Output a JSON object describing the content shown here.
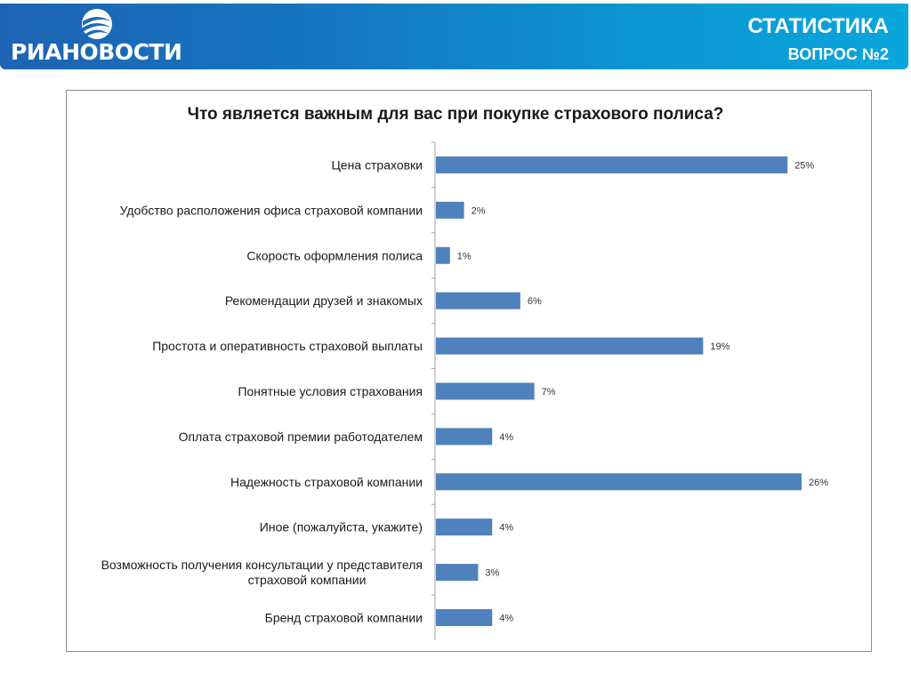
{
  "header": {
    "logo_text": "РИАНОВОСТИ",
    "title": "СТАТИСТИКА",
    "subtitle": "ВОПРОС №2",
    "icon": "ria-novosti-logo-icon"
  },
  "colors": {
    "header_gradient_start": "#1d63b3",
    "header_gradient_end": "#09a6dc",
    "bar": "#4f81bd",
    "axis": "#a6a6a6",
    "text": "#1a1a1a"
  },
  "chart_data": {
    "type": "bar",
    "orientation": "horizontal",
    "title": "Что является важным для вас при покупке страхового полиса?",
    "categories": [
      "Цена страховки",
      "Удобство расположения офиса страховой компании",
      "Скорость оформления полиса",
      "Рекомендации друзей и знакомых",
      "Простота и оперативность страховой выплаты",
      "Понятные условия страхования",
      "Оплата страховой премии работодателем",
      "Надежность страховой компании",
      "Иное (пожалуйста, укажите)",
      "Возможность получения консультации у представителя страховой компании",
      "Бренд страховой компании"
    ],
    "category_lines": [
      [
        "Цена страховки"
      ],
      [
        "Удобство расположения офиса страховой компании"
      ],
      [
        "Скорость оформления полиса"
      ],
      [
        "Рекомендации друзей и знакомых"
      ],
      [
        "Простота и оперативность страховой выплаты"
      ],
      [
        "Понятные условия страхования"
      ],
      [
        "Оплата страховой премии работодателем"
      ],
      [
        "Надежность страховой компании"
      ],
      [
        "Иное (пожалуйста, укажите)"
      ],
      [
        "Возможность получения консультации у представителя",
        "страховой компании"
      ],
      [
        "Бренд страховой компании"
      ]
    ],
    "values": [
      25,
      2,
      1,
      6,
      19,
      7,
      4,
      26,
      4,
      3,
      4
    ],
    "value_labels": [
      "25%",
      "2%",
      "1%",
      "6%",
      "19%",
      "7%",
      "4%",
      "26%",
      "4%",
      "3%",
      "4%"
    ],
    "unit": "%",
    "xlim": [
      0,
      26
    ],
    "grid": false,
    "legend": "none"
  }
}
